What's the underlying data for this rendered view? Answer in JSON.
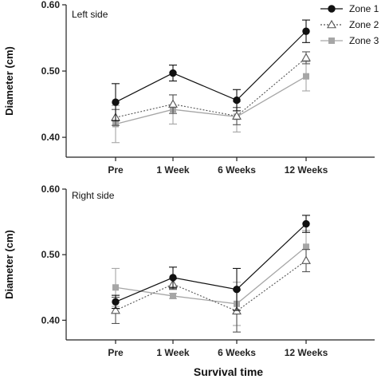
{
  "chart_data": [
    {
      "type": "line",
      "title": "Left side",
      "xlabel": "",
      "ylabel": "Diameter (cm)",
      "categories": [
        "Pre",
        "1 Week",
        "6 Weeks",
        "12 Weeks"
      ],
      "ylim": [
        0.37,
        0.6
      ],
      "yticks": [
        "0.40",
        "0.50",
        "0.60"
      ],
      "series": [
        {
          "name": "Zone 1",
          "values": [
            0.453,
            0.497,
            0.456,
            0.56
          ],
          "errors": [
            0.028,
            0.012,
            0.016,
            0.017
          ]
        },
        {
          "name": "Zone 2",
          "values": [
            0.43,
            0.45,
            0.432,
            0.52
          ],
          "errors": [
            0.012,
            0.014,
            0.013,
            0.009
          ]
        },
        {
          "name": "Zone 3",
          "values": [
            0.42,
            0.442,
            0.431,
            0.492
          ],
          "errors": [
            0.028,
            0.022,
            0.023,
            0.022
          ]
        }
      ]
    },
    {
      "type": "line",
      "title": "Right side",
      "xlabel": "Survival time",
      "ylabel": "Diameter (cm)",
      "categories": [
        "Pre",
        "1 Week",
        "6 Weeks",
        "12 Weeks"
      ],
      "ylim": [
        0.37,
        0.6
      ],
      "yticks": [
        "0.40",
        "0.50",
        "0.60"
      ],
      "series": [
        {
          "name": "Zone 1",
          "values": [
            0.428,
            0.465,
            0.447,
            0.547
          ],
          "errors": [
            0.01,
            0.016,
            0.032,
            0.013
          ]
        },
        {
          "name": "Zone 2",
          "values": [
            0.415,
            0.455,
            0.414,
            0.491
          ],
          "errors": [
            0.02,
            0.008,
            0.032,
            0.017
          ]
        },
        {
          "name": "Zone 3",
          "values": [
            0.45,
            0.437,
            0.425,
            0.512
          ],
          "errors": [
            0.029,
            0.004,
            0.033,
            0.025
          ]
        }
      ]
    }
  ],
  "legend": {
    "position": "top-right",
    "items": [
      {
        "label": "Zone 1",
        "marker": "circle-filled",
        "color": "#111111",
        "dash": "solid"
      },
      {
        "label": "Zone 2",
        "marker": "triangle-open",
        "color": "#555555",
        "dash": "dotted"
      },
      {
        "label": "Zone 3",
        "marker": "square-filled",
        "color": "#a6a6a6",
        "dash": "solid"
      }
    ]
  },
  "colors": {
    "zone1": "#111111",
    "zone2": "#555555",
    "zone3": "#a6a6a6",
    "axis": "#222222"
  }
}
